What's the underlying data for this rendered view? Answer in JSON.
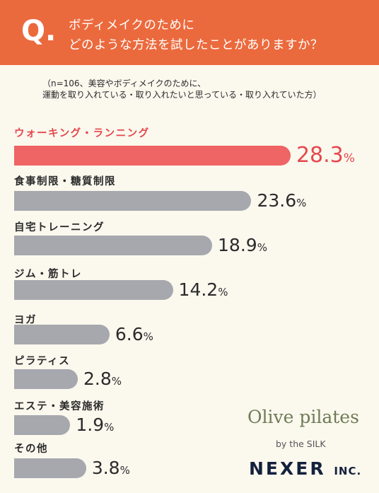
{
  "header": {
    "q_mark": "Q.",
    "question_line1": "ボディメイクのために",
    "question_line2": "どのような方法を試したことがありますか？"
  },
  "note": {
    "line1": "（n=106、美容やボディメイクのために、",
    "line2": "運動を取り入れている・取り入れたいと思っている・取り入れていた方）"
  },
  "chart_data": {
    "type": "bar",
    "orientation": "horizontal",
    "categories": [
      "ウォーキング・ランニング",
      "食事制限・糖質制限",
      "自宅トレーニング",
      "ジム・筋トレ",
      "ヨガ",
      "ピラティス",
      "エステ・美容施術",
      "その他"
    ],
    "values": [
      28.3,
      23.6,
      18.9,
      14.2,
      6.6,
      2.8,
      1.9,
      3.8
    ],
    "value_labels": [
      "28.3",
      "23.6",
      "18.9",
      "14.2",
      "6.6",
      "2.8",
      "1.9",
      "3.8"
    ],
    "unit": "%",
    "highlight_index": 0,
    "colors": {
      "highlight": "#ef6464",
      "default": "#a6a8ae",
      "highlight_label": "#e5484d",
      "text": "#2b2b2b"
    }
  },
  "brand": {
    "olive": "Olive pilates",
    "silk": "by the SILK",
    "nexer": "NEXER",
    "inc": "INC."
  }
}
